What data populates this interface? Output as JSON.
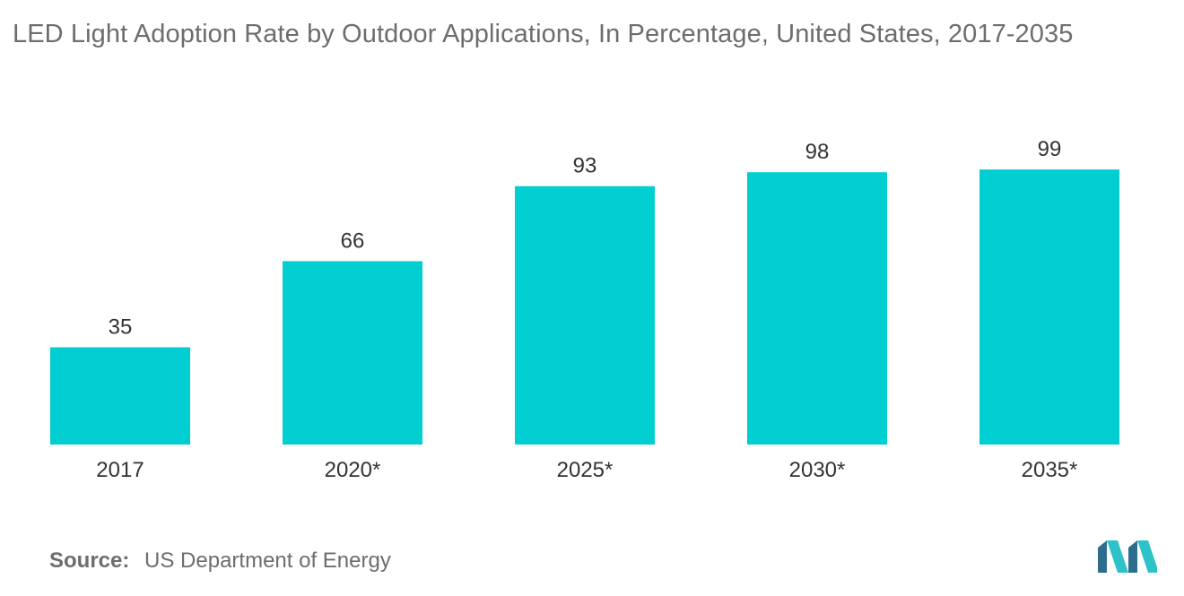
{
  "chart_data": {
    "type": "bar",
    "title": "LED Light Adoption Rate by Outdoor Applications, In Percentage, United States, 2017-2035",
    "categories": [
      "2017",
      "2020*",
      "2025*",
      "2030*",
      "2035*"
    ],
    "values": [
      35,
      66,
      93,
      98,
      99
    ],
    "data_labels": [
      "35",
      "66",
      "93",
      "98",
      "99"
    ],
    "xlabel": "",
    "ylabel": "",
    "ylim": [
      0,
      100
    ],
    "grid": false,
    "legend": "none",
    "bar_color": "#00ced1"
  },
  "source": {
    "label": "Source:",
    "text": "US Department of Energy"
  },
  "logo": {
    "name": "mordor-intelligence-logo",
    "colors": [
      "#2f6d8e",
      "#2bc3c8"
    ]
  }
}
